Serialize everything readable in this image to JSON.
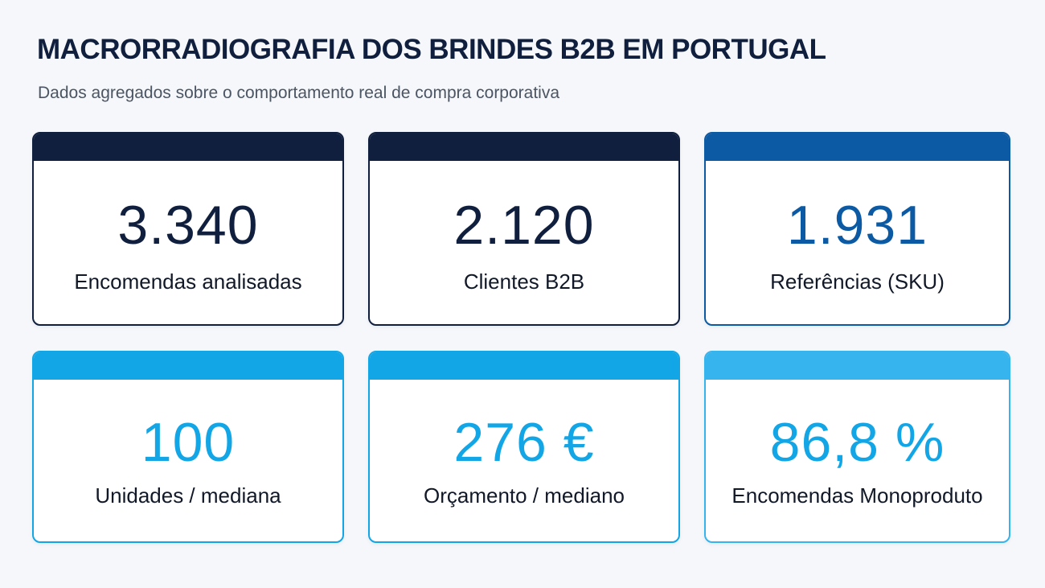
{
  "header": {
    "title": "MACRORRADIOGRAFIA DOS BRINDES B2B EM PORTUGAL",
    "subtitle": "Dados agregados sobre o comportamento real de compra corporativa"
  },
  "cards": [
    {
      "value": "3.340",
      "label": "Encomendas analisadas",
      "accent": "#0f1f3d",
      "value_color": "#0f1f3d"
    },
    {
      "value": "2.120",
      "label": "Clientes B2B",
      "accent": "#0f1f3d",
      "value_color": "#0f1f3d"
    },
    {
      "value": "1.931",
      "label": "Referências (SKU)",
      "accent": "#0b5aa3",
      "value_color": "#0b5aa3"
    },
    {
      "value": "100",
      "label": "Unidades / mediana",
      "accent": "#12a6e6",
      "value_color": "#12a6e6"
    },
    {
      "value": "276 €",
      "label": "Orçamento / mediano",
      "accent": "#12a6e6",
      "value_color": "#12a6e6"
    },
    {
      "value": "86,8 %",
      "label": "Encomendas Monoproduto",
      "accent": "#36b4ee",
      "value_color": "#12a6e6"
    }
  ]
}
